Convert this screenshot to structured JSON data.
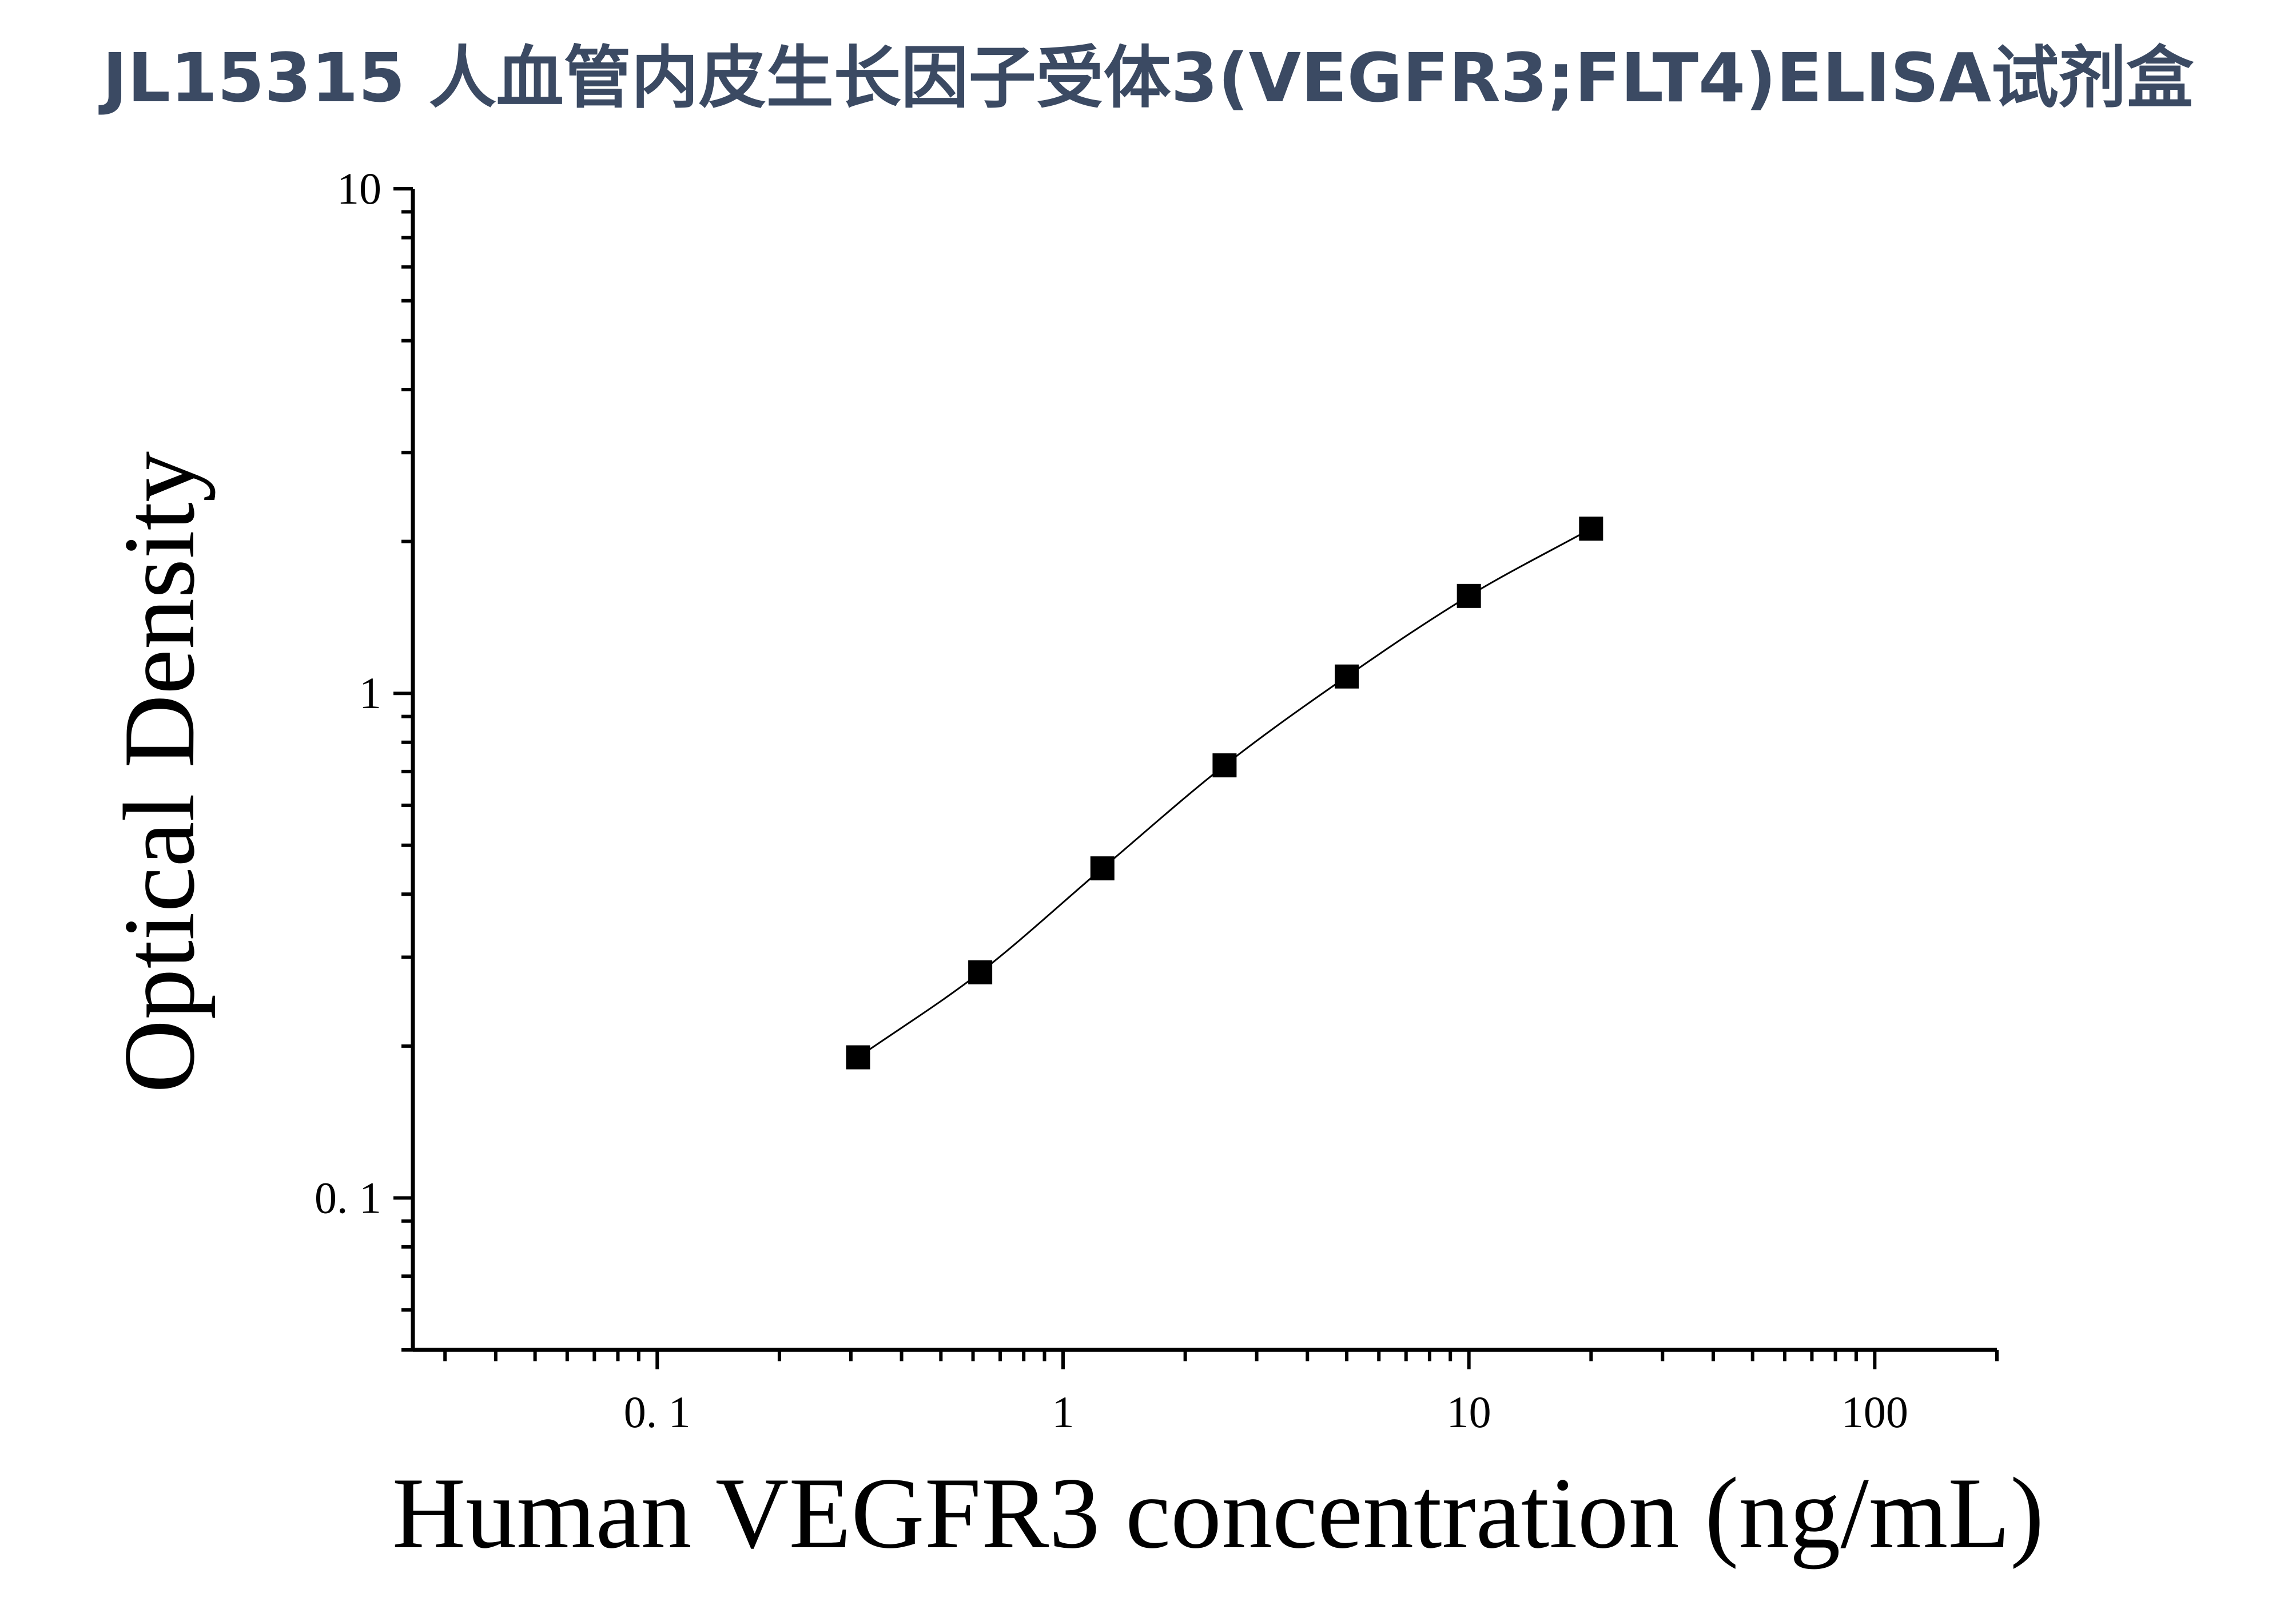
{
  "title": "JL15315 人血管内皮生长因子受体3(VEGFR3;FLT4)ELISA试剂盒",
  "chart_data": {
    "type": "scatter",
    "title": "JL15315 人血管内皮生长因子受体3(VEGFR3;FLT4)ELISA试剂盒",
    "xlabel": "Human VEGFR3 concentration (ng/mL)",
    "ylabel": "Optical Density",
    "x_scale": "log",
    "y_scale": "log",
    "xlim": [
      0.025,
      200
    ],
    "ylim": [
      0.05,
      10
    ],
    "x_ticks": [
      0.1,
      1,
      10,
      100
    ],
    "x_tick_labels": [
      "0. 1",
      "1",
      "10",
      "100"
    ],
    "y_ticks": [
      0.1,
      1,
      10
    ],
    "y_tick_labels": [
      "0. 1",
      "1",
      "10"
    ],
    "grid": false,
    "legend": "none",
    "marker": "square",
    "fit_line": true,
    "color": "#000000",
    "series": [
      {
        "x": [
          0.3125,
          0.625,
          1.25,
          2.5,
          5,
          10,
          20
        ],
        "y": [
          0.19,
          0.28,
          0.45,
          0.72,
          1.08,
          1.56,
          2.12
        ]
      }
    ]
  }
}
